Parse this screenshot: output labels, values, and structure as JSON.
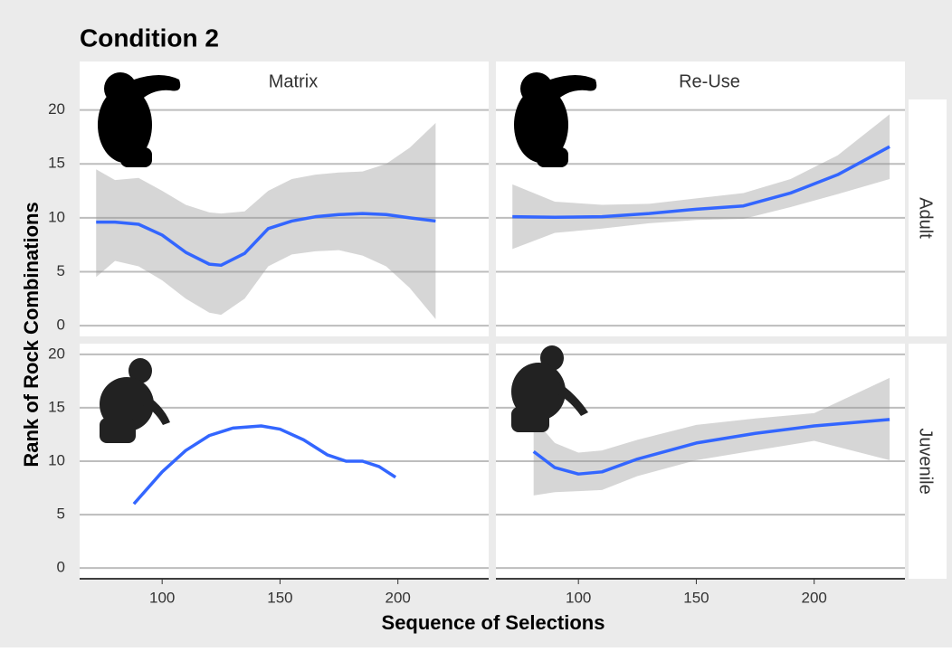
{
  "title": "Condition 2",
  "x_label": "Sequence of Selections",
  "y_label": "Rank of Rock Combinations",
  "columns": [
    "Matrix",
    "Re-Use"
  ],
  "rows": [
    "Adult",
    "Juvenile"
  ],
  "xlim": [
    65,
    238.5
  ],
  "xticks": [
    100,
    150,
    200
  ],
  "yticks": [
    0,
    5,
    10,
    15,
    20
  ],
  "chart_data": [
    {
      "type": "line",
      "ylim": [
        -1,
        24.5
      ],
      "x": [
        72,
        80,
        90,
        100,
        110,
        120,
        125,
        135,
        145,
        155,
        165,
        175,
        185,
        195,
        205,
        216
      ],
      "series": [
        {
          "color": "#3366ff",
          "values": [
            9.6,
            9.6,
            9.4,
            8.4,
            6.8,
            5.7,
            5.6,
            6.7,
            9.0,
            9.7,
            10.1,
            10.3,
            10.4,
            10.3,
            10.0,
            9.7
          ],
          "lower": [
            4.5,
            6.0,
            5.5,
            4.2,
            2.5,
            1.2,
            1.0,
            2.5,
            5.5,
            6.6,
            6.9,
            7.0,
            6.5,
            5.5,
            3.5,
            0.6
          ],
          "upper": [
            14.5,
            13.5,
            13.7,
            12.5,
            11.2,
            10.5,
            10.4,
            10.6,
            12.5,
            13.6,
            14.0,
            14.2,
            14.3,
            15.0,
            16.5,
            18.8
          ]
        }
      ]
    },
    {
      "type": "line",
      "ylim": [
        -1,
        24.5
      ],
      "x": [
        72,
        90,
        110,
        130,
        150,
        170,
        190,
        210,
        232
      ],
      "series": [
        {
          "color": "#3366ff",
          "values": [
            10.1,
            10.05,
            10.1,
            10.4,
            10.8,
            11.1,
            12.3,
            14.0,
            16.6
          ],
          "lower": [
            7.1,
            8.6,
            9.0,
            9.5,
            9.8,
            9.9,
            11.0,
            12.2,
            13.6
          ],
          "upper": [
            13.1,
            11.5,
            11.2,
            11.3,
            11.8,
            12.3,
            13.6,
            15.8,
            19.6
          ]
        }
      ]
    },
    {
      "type": "line",
      "ylim": [
        -1,
        21
      ],
      "x": [
        88,
        100,
        110,
        120,
        130,
        142,
        150,
        160,
        170,
        178,
        185,
        192,
        199
      ],
      "series": [
        {
          "color": "#3366ff",
          "values": [
            6.0,
            9.0,
            11.0,
            12.4,
            13.1,
            13.3,
            13.0,
            12.0,
            10.6,
            10.0,
            10.0,
            9.5,
            8.5
          ]
        }
      ]
    },
    {
      "type": "line",
      "ylim": [
        -1,
        21
      ],
      "x": [
        81,
        90,
        100,
        110,
        125,
        150,
        175,
        200,
        232
      ],
      "series": [
        {
          "color": "#3366ff",
          "values": [
            10.9,
            9.4,
            8.8,
            9.0,
            10.2,
            11.7,
            12.6,
            13.3,
            13.9
          ],
          "lower": [
            6.8,
            7.1,
            7.2,
            7.3,
            8.6,
            10.1,
            11.0,
            11.9,
            10.1
          ],
          "upper": [
            14.0,
            11.7,
            10.8,
            11.0,
            12.0,
            13.4,
            14.0,
            14.5,
            17.8
          ]
        }
      ]
    }
  ]
}
